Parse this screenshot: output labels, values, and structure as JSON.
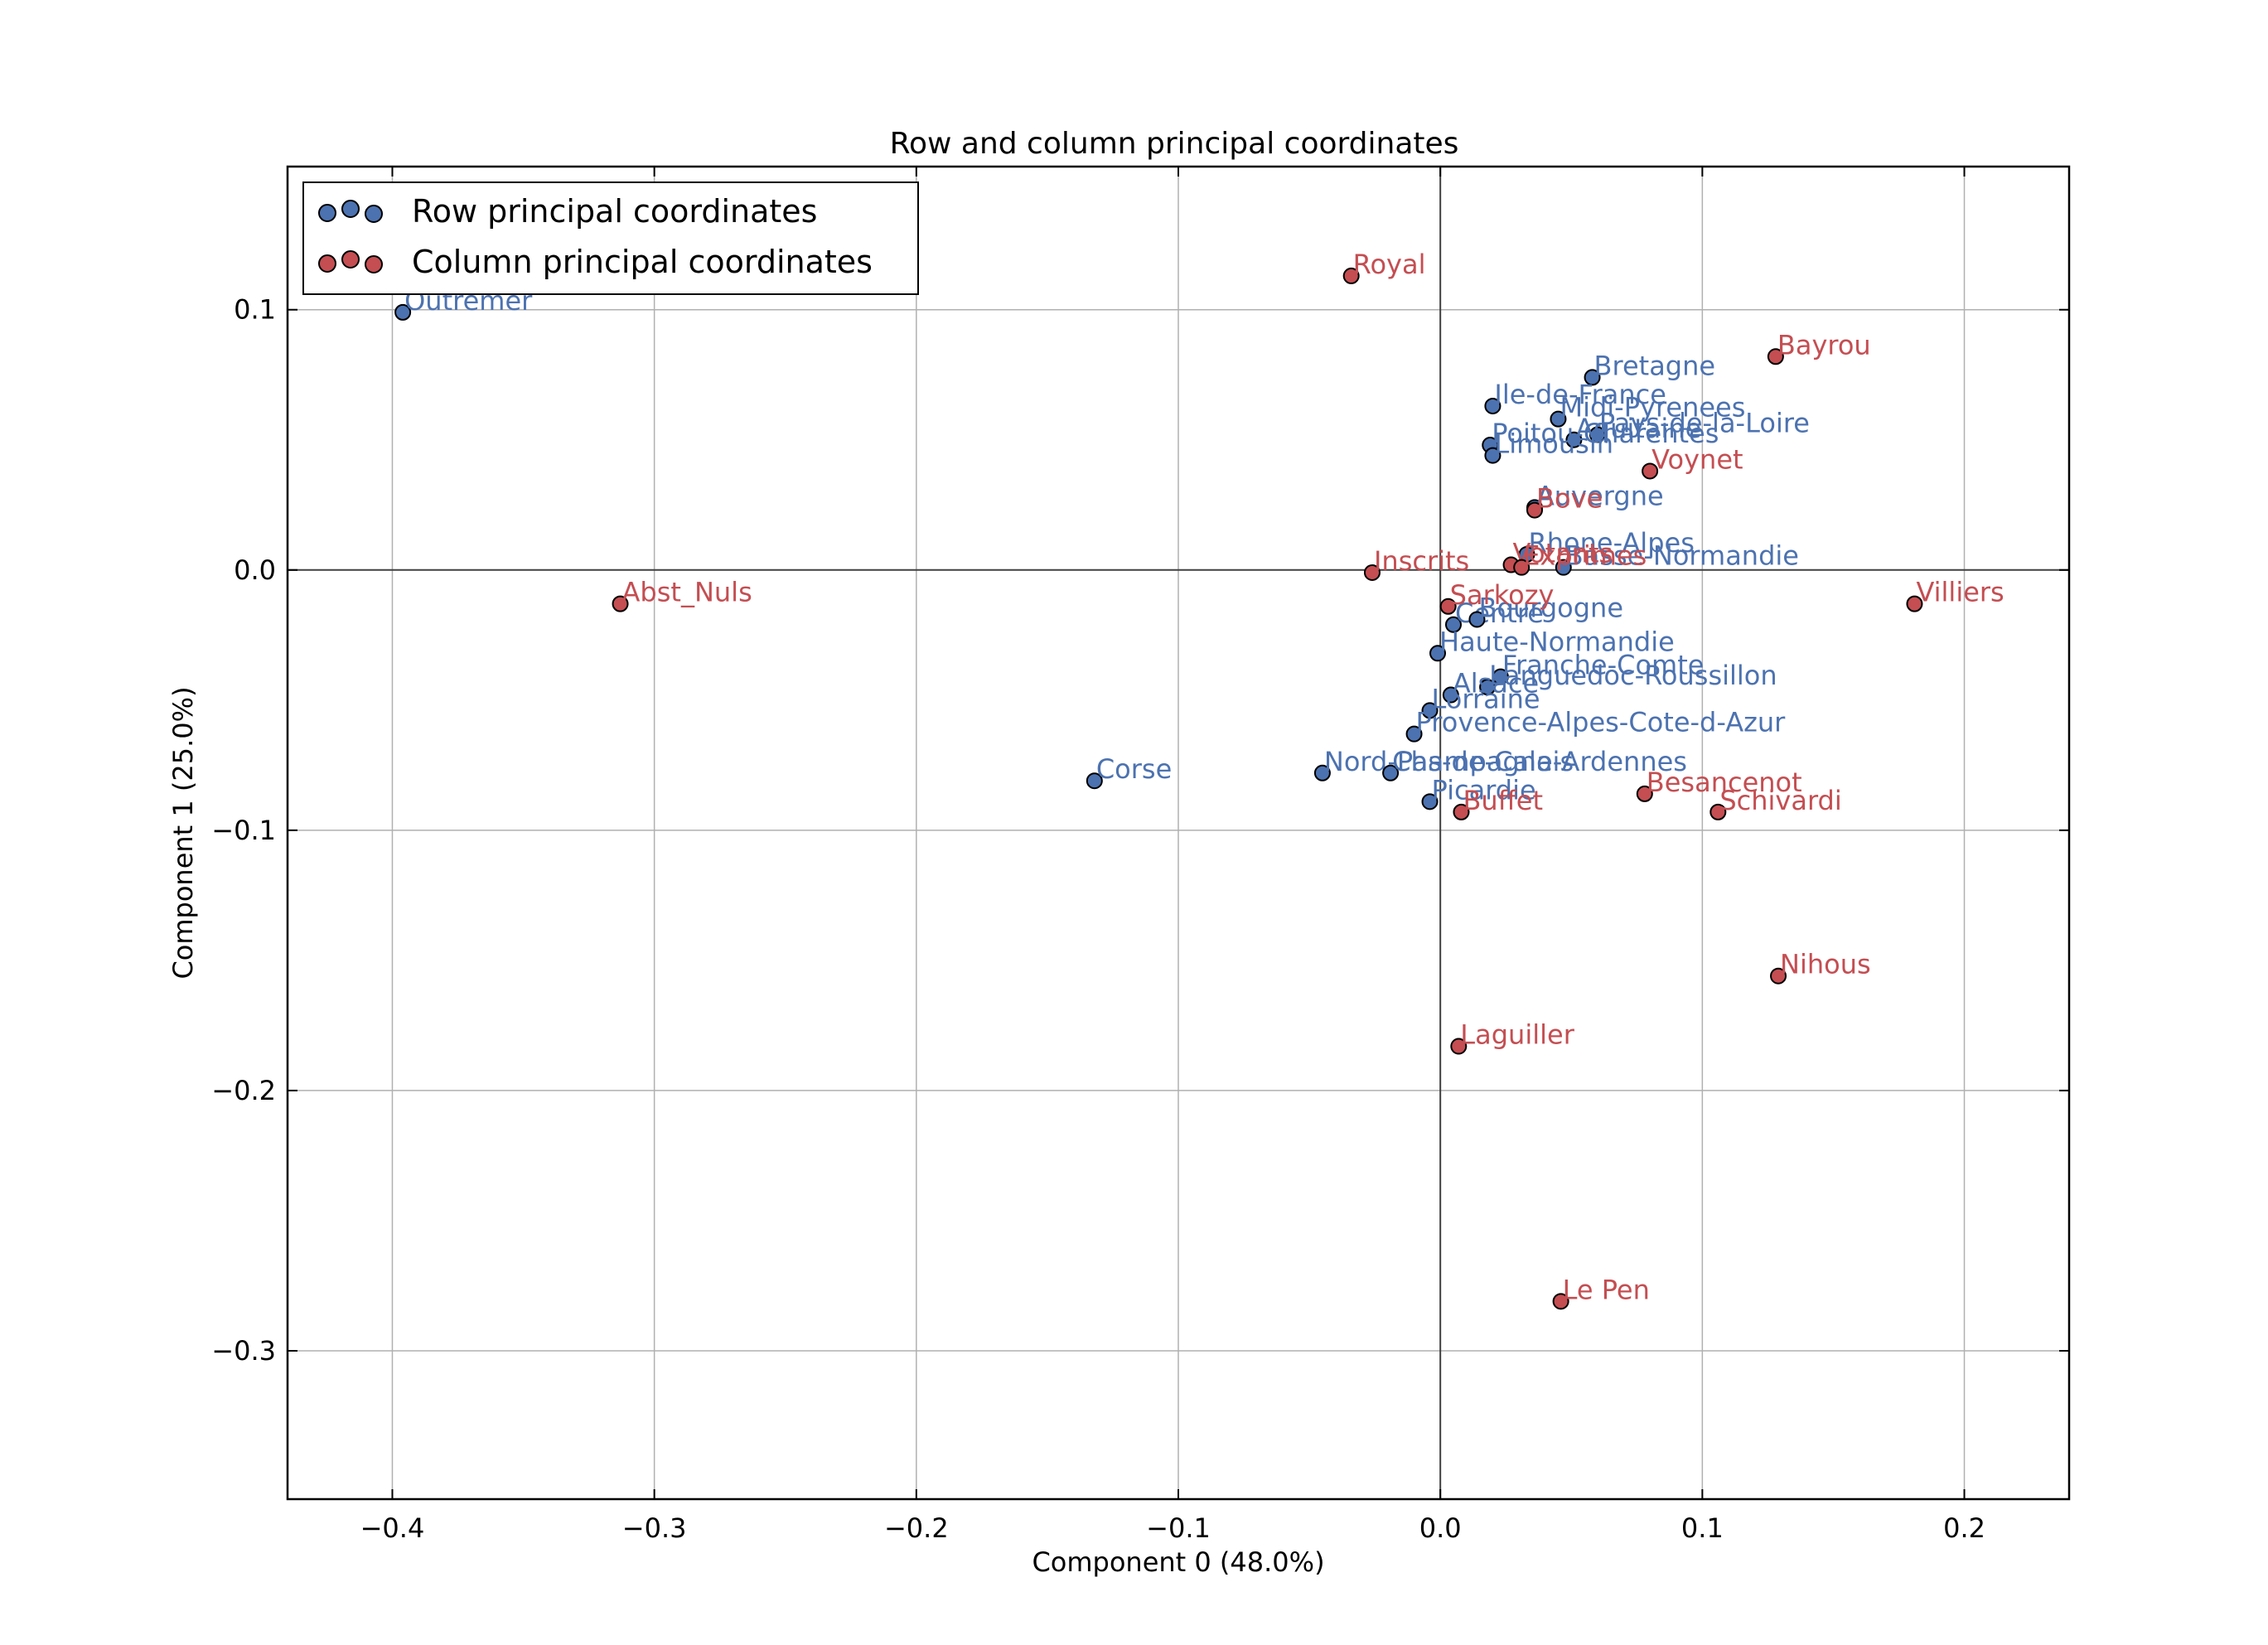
{
  "chart_data": {
    "type": "scatter",
    "title": "Row and column principal coordinates",
    "xlabel": "Component 0 (48.0%)",
    "ylabel": "Component 1 (25.0%)",
    "xlim": [
      -0.44,
      0.24
    ],
    "ylim": [
      -0.357,
      0.155
    ],
    "xticks": [
      -0.4,
      -0.3,
      -0.2,
      -0.1,
      0.0,
      0.1,
      0.2
    ],
    "yticks": [
      0.1,
      0.0,
      -0.1,
      -0.2,
      -0.3
    ],
    "xtick_labels": [
      "−0.4",
      "−0.3",
      "−0.2",
      "−0.1",
      "0.0",
      "0.1",
      "0.2"
    ],
    "ytick_labels": [
      "0.1",
      "0.0",
      "−0.1",
      "−0.2",
      "−0.3"
    ],
    "grid": true,
    "zero_lines": true,
    "legend_position": "top-left",
    "series": [
      {
        "name": "Row principal coordinates",
        "color": "#4c72b0",
        "points": [
          {
            "label": "Outremer",
            "x": -0.396,
            "y": 0.099
          },
          {
            "label": "Corse",
            "x": -0.132,
            "y": -0.081
          },
          {
            "label": "Bretagne",
            "x": 0.058,
            "y": 0.074
          },
          {
            "label": "Ile-de-France",
            "x": 0.02,
            "y": 0.063
          },
          {
            "label": "Midi-Pyrenees",
            "x": 0.045,
            "y": 0.058
          },
          {
            "label": "Pays-de-la-Loire",
            "x": 0.06,
            "y": 0.052
          },
          {
            "label": "Aquitaine",
            "x": 0.051,
            "y": 0.05
          },
          {
            "label": "Poitou-Charentes",
            "x": 0.019,
            "y": 0.048
          },
          {
            "label": "Limousin",
            "x": 0.02,
            "y": 0.044
          },
          {
            "label": "Auvergne",
            "x": 0.036,
            "y": 0.024
          },
          {
            "label": "Rhone-Alpes",
            "x": 0.033,
            "y": 0.006
          },
          {
            "label": "Basse-Normandie",
            "x": 0.047,
            "y": 0.001
          },
          {
            "label": "Centre",
            "x": 0.005,
            "y": -0.021
          },
          {
            "label": "Bourgogne",
            "x": 0.014,
            "y": -0.019
          },
          {
            "label": "Haute-Normandie",
            "x": -0.001,
            "y": -0.032
          },
          {
            "label": "Franche-Comte",
            "x": 0.023,
            "y": -0.041
          },
          {
            "label": "Languedoc-Roussillon",
            "x": 0.018,
            "y": -0.045
          },
          {
            "label": "Alsace",
            "x": 0.004,
            "y": -0.048
          },
          {
            "label": "Lorraine",
            "x": -0.004,
            "y": -0.054
          },
          {
            "label": "Provence-Alpes-Cote-d-Azur",
            "x": -0.01,
            "y": -0.063
          },
          {
            "label": "Nord-Pas-de-Calais",
            "x": -0.045,
            "y": -0.078
          },
          {
            "label": "Champagne-Ardennes",
            "x": -0.019,
            "y": -0.078
          },
          {
            "label": "Picardie",
            "x": -0.004,
            "y": -0.089
          }
        ]
      },
      {
        "name": "Column principal coordinates",
        "color": "#c44e52",
        "points": [
          {
            "label": "Royal",
            "x": -0.034,
            "y": 0.113
          },
          {
            "label": "Bayrou",
            "x": 0.128,
            "y": 0.082
          },
          {
            "label": "Voynet",
            "x": 0.08,
            "y": 0.038
          },
          {
            "label": "Bove",
            "x": 0.036,
            "y": 0.023
          },
          {
            "label": "Votants",
            "x": 0.027,
            "y": 0.002
          },
          {
            "label": "Exprimes",
            "x": 0.031,
            "y": 0.001
          },
          {
            "label": "Inscrits",
            "x": -0.026,
            "y": -0.001
          },
          {
            "label": "Abst_Nuls",
            "x": -0.313,
            "y": -0.013
          },
          {
            "label": "Villiers",
            "x": 0.181,
            "y": -0.013
          },
          {
            "label": "Sarkozy",
            "x": 0.003,
            "y": -0.014
          },
          {
            "label": "Besancenot",
            "x": 0.078,
            "y": -0.086
          },
          {
            "label": "Schivardi",
            "x": 0.106,
            "y": -0.093
          },
          {
            "label": "Buffet",
            "x": 0.008,
            "y": -0.093
          },
          {
            "label": "Nihous",
            "x": 0.129,
            "y": -0.156
          },
          {
            "label": "Laguiller",
            "x": 0.007,
            "y": -0.183
          },
          {
            "label": "Le Pen",
            "x": 0.046,
            "y": -0.281
          }
        ]
      }
    ]
  }
}
